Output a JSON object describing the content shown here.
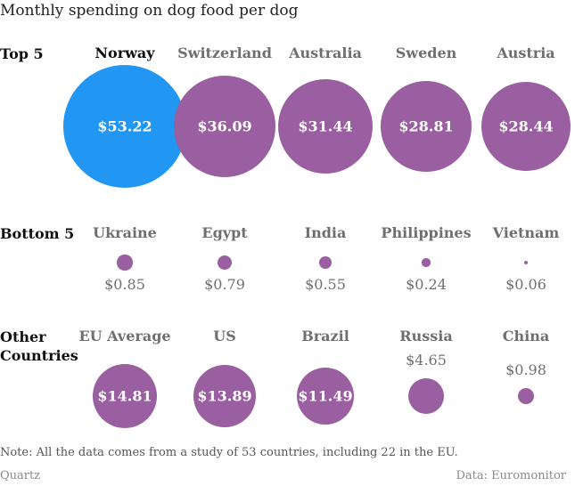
{
  "title": "Monthly spending on dog food per dog",
  "colors": {
    "highlight": "#2196f3",
    "default": "#9a5fa0"
  },
  "chart_data": {
    "type": "bubble",
    "unit": "USD per month",
    "groups": [
      {
        "label": "Top 5",
        "items": [
          {
            "country": "Norway",
            "value": 53.22,
            "display": "$53.22",
            "highlight": true
          },
          {
            "country": "Switzerland",
            "value": 36.09,
            "display": "$36.09"
          },
          {
            "country": "Australia",
            "value": 31.44,
            "display": "$31.44"
          },
          {
            "country": "Sweden",
            "value": 28.81,
            "display": "$28.81"
          },
          {
            "country": "Austria",
            "value": 28.44,
            "display": "$28.44"
          }
        ]
      },
      {
        "label": "Bottom 5",
        "items": [
          {
            "country": "Ukraine",
            "value": 0.85,
            "display": "$0.85"
          },
          {
            "country": "Egypt",
            "value": 0.79,
            "display": "$0.79"
          },
          {
            "country": "India",
            "value": 0.55,
            "display": "$0.55"
          },
          {
            "country": "Philippines",
            "value": 0.24,
            "display": "$0.24"
          },
          {
            "country": "Vietnam",
            "value": 0.06,
            "display": "$0.06"
          }
        ]
      },
      {
        "label": "Other Countries",
        "items": [
          {
            "country": "EU Average",
            "value": 14.81,
            "display": "$14.81"
          },
          {
            "country": "US",
            "value": 13.89,
            "display": "$13.89"
          },
          {
            "country": "Brazil",
            "value": 11.49,
            "display": "$11.49"
          },
          {
            "country": "Russia",
            "value": 4.65,
            "display": "$4.65"
          },
          {
            "country": "China",
            "value": 0.98,
            "display": "$0.98"
          }
        ]
      }
    ]
  },
  "note": "Note: All the data comes from a study of 53 countries, including 22 in the EU.",
  "source_left": "Quartz",
  "source_right": "Data: Euromonitor"
}
